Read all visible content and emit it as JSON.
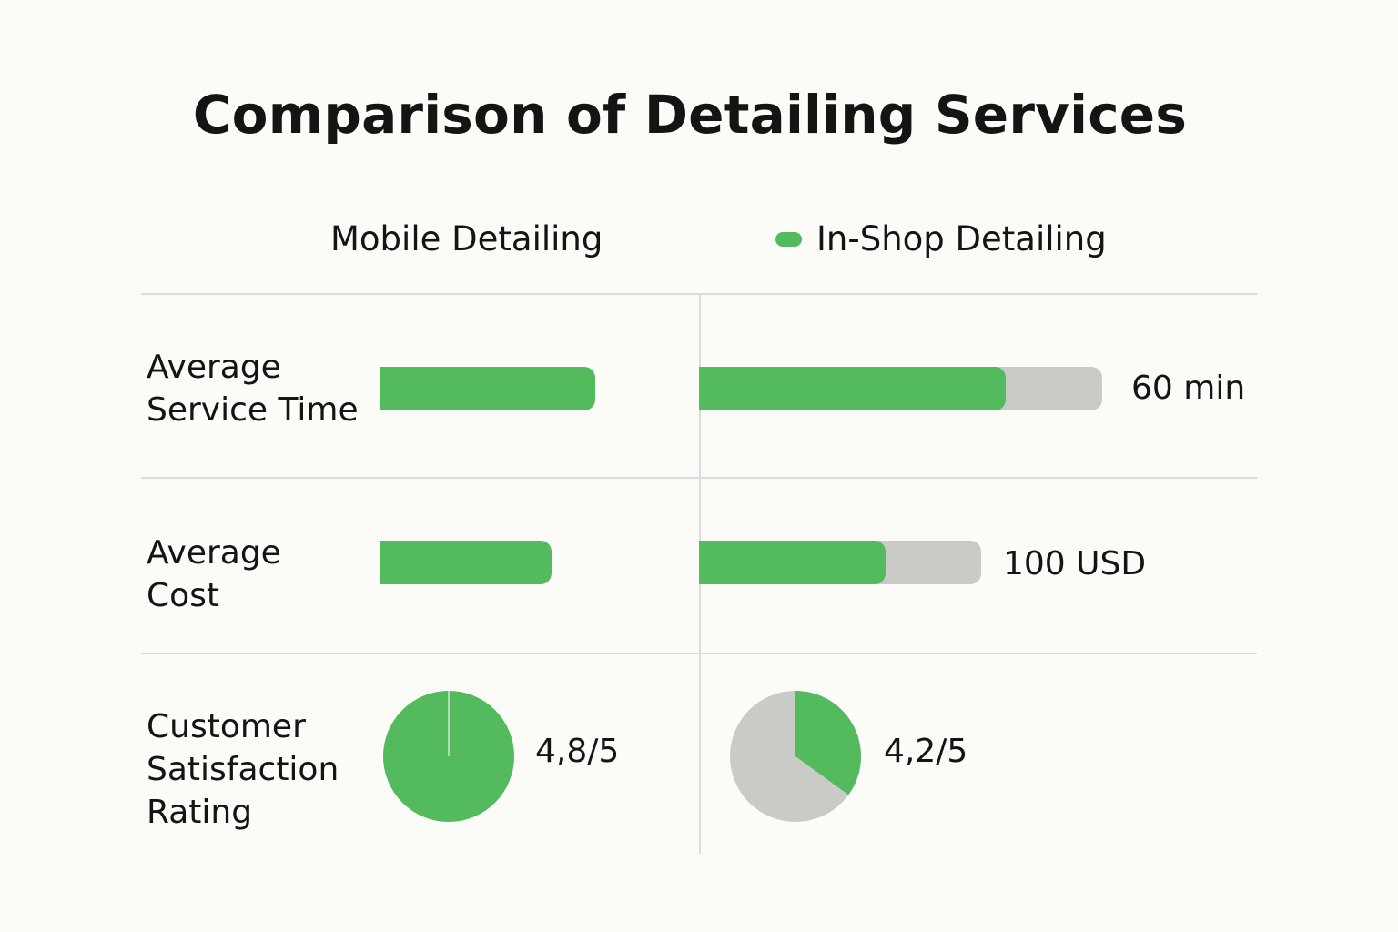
{
  "chart_data": {
    "type": "bar",
    "title": "Comparison of Detailing Services",
    "colors": {
      "fill": "#53ba5d",
      "track": "#cacac6"
    },
    "series": [
      {
        "name": "Mobile Detailing"
      },
      {
        "name": "In-Shop Detailing",
        "legend_swatch": true
      }
    ],
    "rows": [
      {
        "label_lines": [
          "Average",
          "Service Time"
        ],
        "kind": "bar",
        "mobile": {
          "fill_fraction": 1.0,
          "value_label": ""
        },
        "inshop": {
          "fill_fraction": 0.76,
          "value_label": "60 min"
        }
      },
      {
        "label_lines": [
          "Average",
          "Cost"
        ],
        "kind": "bar",
        "mobile": {
          "fill_fraction": 1.0,
          "value_label": ""
        },
        "inshop": {
          "fill_fraction": 0.66,
          "value_label": "100 USD"
        }
      },
      {
        "label_lines": [
          "Customer",
          "Satisfaction",
          "Rating"
        ],
        "kind": "pie",
        "mobile": {
          "fill_fraction": 1.0,
          "value_label": "4,8/5"
        },
        "inshop": {
          "fill_fraction": 0.35,
          "value_label": "4,2/5"
        }
      }
    ]
  }
}
